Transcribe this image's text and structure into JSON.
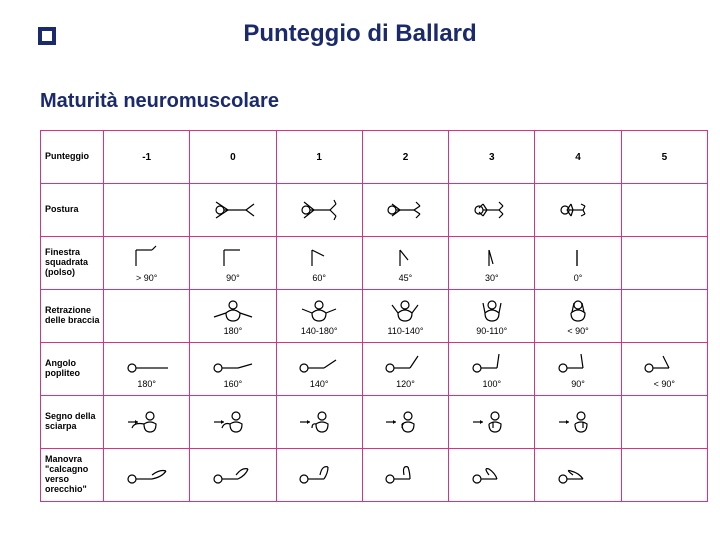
{
  "title": "Punteggio di Ballard",
  "subtitle": "Maturità neuromuscolare",
  "header_label": "Punteggio",
  "columns": [
    "-1",
    "0",
    "1",
    "2",
    "3",
    "4",
    "5"
  ],
  "rows": [
    {
      "label": "Postura",
      "cells": [
        {
          "icon": null,
          "text": null
        },
        {
          "icon": "posture0",
          "text": null
        },
        {
          "icon": "posture1",
          "text": null
        },
        {
          "icon": "posture2",
          "text": null
        },
        {
          "icon": "posture3",
          "text": null
        },
        {
          "icon": "posture4",
          "text": null
        },
        {
          "icon": null,
          "text": null
        }
      ]
    },
    {
      "label": "Finestra squadrata (polso)",
      "cells": [
        {
          "icon": "wrist-1",
          "text": "> 90°"
        },
        {
          "icon": "wrist0",
          "text": "90°"
        },
        {
          "icon": "wrist1",
          "text": "60°"
        },
        {
          "icon": "wrist2",
          "text": "45°"
        },
        {
          "icon": "wrist3",
          "text": "30°"
        },
        {
          "icon": "wrist4",
          "text": "0°"
        },
        {
          "icon": null,
          "text": null
        }
      ]
    },
    {
      "label": "Retrazione delle braccia",
      "cells": [
        {
          "icon": null,
          "text": null
        },
        {
          "icon": "arm0",
          "text": "180°"
        },
        {
          "icon": "arm1",
          "text": "140-180°"
        },
        {
          "icon": "arm2",
          "text": "110-140°"
        },
        {
          "icon": "arm3",
          "text": "90-110°"
        },
        {
          "icon": "arm4",
          "text": "< 90°"
        },
        {
          "icon": null,
          "text": null
        }
      ]
    },
    {
      "label": "Angolo popliteo",
      "cells": [
        {
          "icon": "pop-1",
          "text": "180°"
        },
        {
          "icon": "pop0",
          "text": "160°"
        },
        {
          "icon": "pop1",
          "text": "140°"
        },
        {
          "icon": "pop2",
          "text": "120°"
        },
        {
          "icon": "pop3",
          "text": "100°"
        },
        {
          "icon": "pop4",
          "text": "90°"
        },
        {
          "icon": "pop5",
          "text": "< 90°"
        }
      ]
    },
    {
      "label": "Segno della sciarpa",
      "cells": [
        {
          "icon": "scarf-1",
          "text": null
        },
        {
          "icon": "scarf0",
          "text": null
        },
        {
          "icon": "scarf1",
          "text": null
        },
        {
          "icon": "scarf2",
          "text": null
        },
        {
          "icon": "scarf3",
          "text": null
        },
        {
          "icon": "scarf4",
          "text": null
        },
        {
          "icon": null,
          "text": null
        }
      ]
    },
    {
      "label": "Manovra \"calcagno verso orecchio\"",
      "cells": [
        {
          "icon": "heel-1",
          "text": null
        },
        {
          "icon": "heel0",
          "text": null
        },
        {
          "icon": "heel1",
          "text": null
        },
        {
          "icon": "heel2",
          "text": null
        },
        {
          "icon": "heel3",
          "text": null
        },
        {
          "icon": "heel4",
          "text": null
        },
        {
          "icon": null,
          "text": null
        }
      ]
    }
  ],
  "colors": {
    "border": "#d63384",
    "title": "#1a2a6c",
    "stroke": "#000000"
  }
}
